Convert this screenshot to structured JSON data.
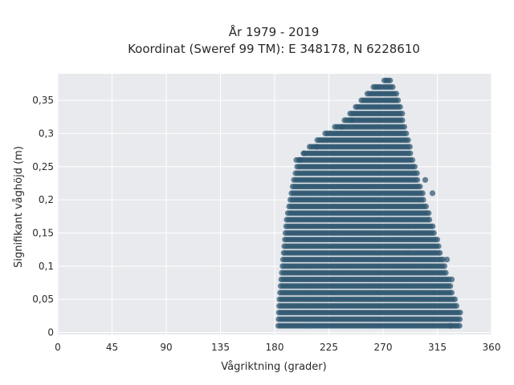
{
  "chart_data": {
    "type": "scatter",
    "title_line1": "År 1979 - 2019",
    "title_line2": "Koordinat (Sweref 99 TM): E 348178, N 6228610",
    "xlabel": "Vågriktning (grader)",
    "ylabel": "Signifikant våghöjd (m)",
    "xlim": [
      0,
      360
    ],
    "ylim": [
      -0.003,
      0.39
    ],
    "xticks": [
      0,
      45,
      90,
      135,
      180,
      225,
      270,
      315,
      360
    ],
    "xtick_labels": [
      "0",
      "45",
      "90",
      "135",
      "180",
      "225",
      "270",
      "315",
      "360"
    ],
    "yticks": [
      0,
      0.05,
      0.1,
      0.15,
      0.2,
      0.25,
      0.3,
      0.35
    ],
    "ytick_labels": [
      "0",
      "0,05",
      "0,1",
      "0,15",
      "0,2",
      "0,25",
      "0,3",
      "0,35"
    ],
    "grid": true,
    "marker_color": "#2f5870",
    "background": "#e8eaee",
    "envelope": {
      "description_points_only": true,
      "left_edge": [
        [
          183,
          0.01
        ],
        [
          184,
          0.05
        ],
        [
          186,
          0.09
        ],
        [
          188,
          0.13
        ],
        [
          190,
          0.17
        ],
        [
          193,
          0.2
        ],
        [
          196,
          0.23
        ],
        [
          200,
          0.26
        ],
        [
          209,
          0.28
        ],
        [
          222,
          0.3
        ],
        [
          238,
          0.32
        ],
        [
          252,
          0.35
        ],
        [
          262,
          0.37
        ],
        [
          271,
          0.38
        ]
      ],
      "right_edge": [
        [
          276,
          0.38
        ],
        [
          282,
          0.36
        ],
        [
          286,
          0.33
        ],
        [
          290,
          0.3
        ],
        [
          295,
          0.26
        ],
        [
          300,
          0.23
        ],
        [
          305,
          0.2
        ],
        [
          310,
          0.17
        ],
        [
          315,
          0.14
        ],
        [
          320,
          0.11
        ],
        [
          325,
          0.08
        ],
        [
          330,
          0.05
        ],
        [
          334,
          0.03
        ],
        [
          334,
          0.01
        ]
      ]
    },
    "outliers": [
      [
        236,
        0.31
      ],
      [
        244,
        0.32
      ],
      [
        215,
        0.28
      ],
      [
        201,
        0.26
      ],
      [
        305,
        0.23
      ],
      [
        311,
        0.21
      ],
      [
        323,
        0.11
      ],
      [
        327,
        0.08
      ],
      [
        326,
        0.01
      ],
      [
        204,
        0.27
      ],
      [
        198,
        0.26
      ]
    ]
  }
}
